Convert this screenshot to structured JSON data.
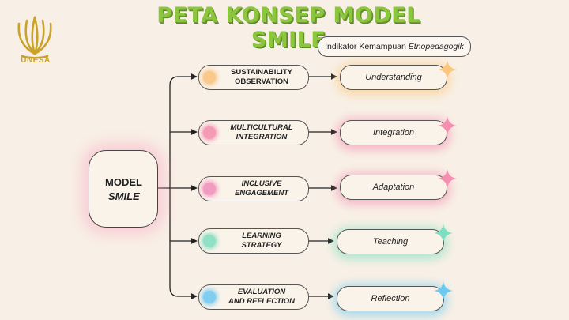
{
  "title": "PETA KONSEP MODEL SMILE",
  "logo": {
    "text": "UNESA",
    "color": "#c9a22a"
  },
  "indicator_header": {
    "prefix": "Indikator Kemampuan ",
    "emphasis": "Etnopedagogik"
  },
  "center_node": {
    "line1": "MODEL",
    "line2": "SMILE"
  },
  "components": [
    {
      "line1": "SUSTAINABILITY",
      "line2": "OBSERVATION",
      "italic": false,
      "accent": "#f9c98c"
    },
    {
      "line1": "MULTICULTURAL",
      "line2": "INTEGRATION",
      "italic": true,
      "accent": "#f49ab6"
    },
    {
      "line1": "INCLUSIVE",
      "line2": "ENGAGEMENT",
      "italic": true,
      "accent": "#f29bc0"
    },
    {
      "line1": "LEARNING",
      "line2": "STRATEGY",
      "italic": true,
      "accent": "#8fe0c4"
    },
    {
      "line1": "EVALUATION",
      "line2": "AND REFLECTION",
      "italic": true,
      "accent": "#7fcdf0"
    }
  ],
  "indicators": [
    {
      "label": "Understanding",
      "color": "#fbc77d"
    },
    {
      "label": "Integration",
      "color": "#f48fb1"
    },
    {
      "label": "Adaptation",
      "color": "#f48fb1"
    },
    {
      "label": "Teaching",
      "color": "#7ee0c0"
    },
    {
      "label": "Reflection",
      "color": "#6ccaf0"
    }
  ],
  "colors": {
    "background": "#f8f0e6",
    "title_green": "#8cc63f",
    "line": "#222222"
  }
}
